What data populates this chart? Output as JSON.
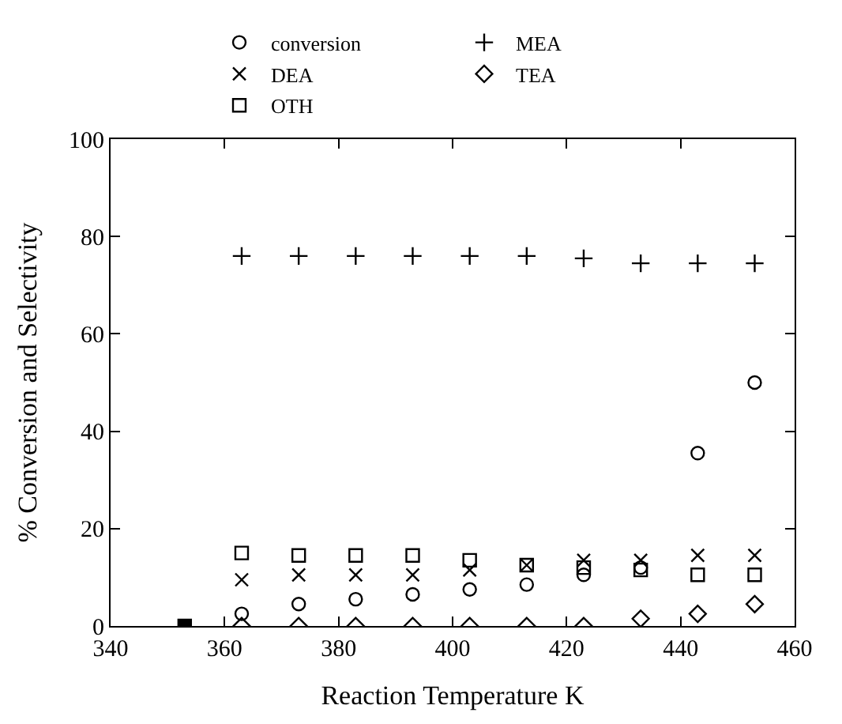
{
  "chart_data": {
    "type": "scatter",
    "xlabel": "Reaction Temperature K",
    "ylabel": "% Conversion and Selectivity",
    "x": [
      363,
      373,
      383,
      393,
      403,
      413,
      423,
      433,
      443,
      453
    ],
    "series": [
      {
        "name": "conversion",
        "color": "#000000",
        "marker": "circle",
        "values": [
          2.5,
          4.5,
          5.5,
          6.5,
          7.5,
          8.5,
          10.5,
          12,
          35.5,
          50
        ]
      },
      {
        "name": "MEA",
        "color": "#000000",
        "marker": "cross",
        "values": [
          76,
          76,
          76,
          76,
          76,
          76,
          75.5,
          74.5,
          74.5,
          74.5
        ]
      },
      {
        "name": "DEA",
        "color": "#000000",
        "marker": "x",
        "values": [
          9.5,
          10.5,
          10.5,
          10.5,
          11.5,
          12.5,
          13.5,
          13.5,
          14.5,
          14.5
        ]
      },
      {
        "name": "TEA",
        "color": "#000000",
        "marker": "diamond",
        "values": [
          0,
          0,
          0,
          0,
          0,
          0,
          0,
          1.5,
          2.5,
          4.5
        ]
      },
      {
        "name": "OTH",
        "color": "#000000",
        "marker": "square",
        "values": [
          15,
          14.5,
          14.5,
          14.5,
          13.5,
          12.5,
          12,
          11.5,
          10.5,
          10.5
        ]
      },
      {
        "color": "#000000",
        "marker": "square",
        "x": [
          353
        ],
        "values": [
          0
        ]
      }
    ],
    "xlim": [
      340,
      460
    ],
    "xticks": [
      340,
      360,
      380,
      400,
      420,
      440,
      460
    ],
    "ylim": [
      0,
      100
    ],
    "yticks": [
      0,
      20,
      40,
      60,
      80,
      100
    ],
    "legend": "top"
  }
}
